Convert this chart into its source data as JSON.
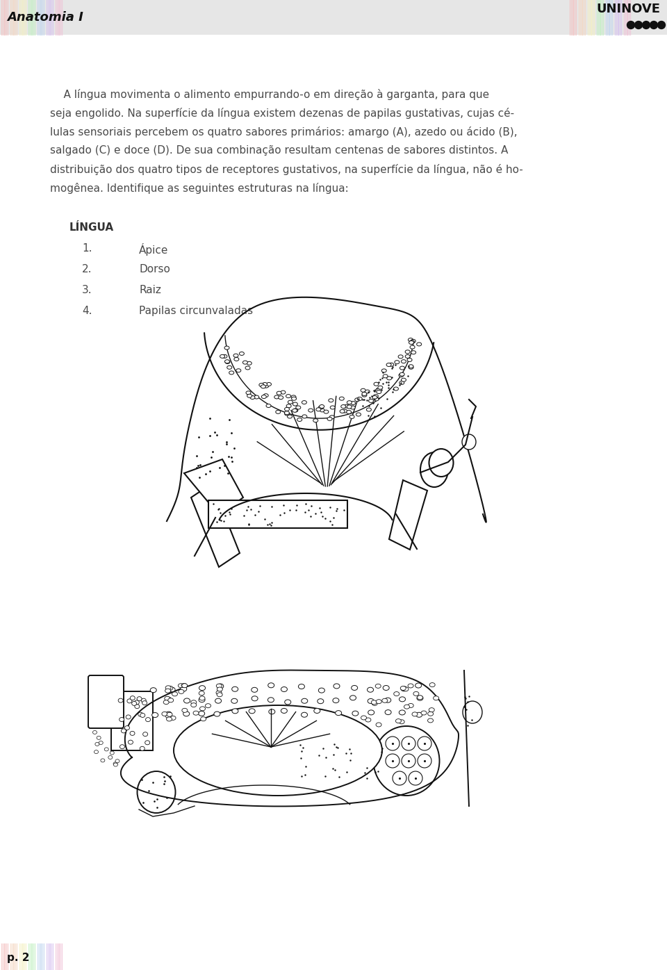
{
  "page_bg": "#ffffff",
  "header_title": "Anatomia I",
  "header_logo_text": "UNINOVE",
  "footer_page": "p. 2",
  "body_text_lines": [
    "    A língua movimenta o alimento empurrando-o em direção à garganta, para que",
    "seja engolido. Na superfície da língua existem dezenas de papilas gustativas, cujas cé-",
    "lulas sensoriais percebem os quatro sabores primários: amargo (A), azedo ou ácido (B),",
    "salgado (C) e doce (D). De sua combinação resultam centenas de sabores distintos. A",
    "distribuição dos quatro tipos de receptores gustativos, na superfície da língua, não é ho-",
    "mogênea. Identifique as seguintes estruturas na língua:"
  ],
  "section_title": "LÍNGUA",
  "items": [
    {
      "num": "1.",
      "label": "Ápice"
    },
    {
      "num": "2.",
      "label": "Dorso"
    },
    {
      "num": "3.",
      "label": "Raiz"
    },
    {
      "num": "4.",
      "label": "Papilas circunvaladas"
    }
  ],
  "text_color": "#4a4a4a",
  "header_text_color": "#111111",
  "dots_color": "#111111",
  "section_title_color": "#333333",
  "item_color": "#4a4a4a",
  "line_color": "#111111",
  "stripe_colors_left": [
    "#f5c0c0",
    "#f5d5c0",
    "#f5f0c0",
    "#c0f0c0",
    "#c0d5f0",
    "#d5c0f0",
    "#f0c0d5"
  ],
  "stripe_colors_right": [
    "#f5c0c0",
    "#f5d5c0",
    "#f5f0c0",
    "#c0f0c0",
    "#c0d5f0",
    "#d5c0f0",
    "#f0c0d5"
  ]
}
